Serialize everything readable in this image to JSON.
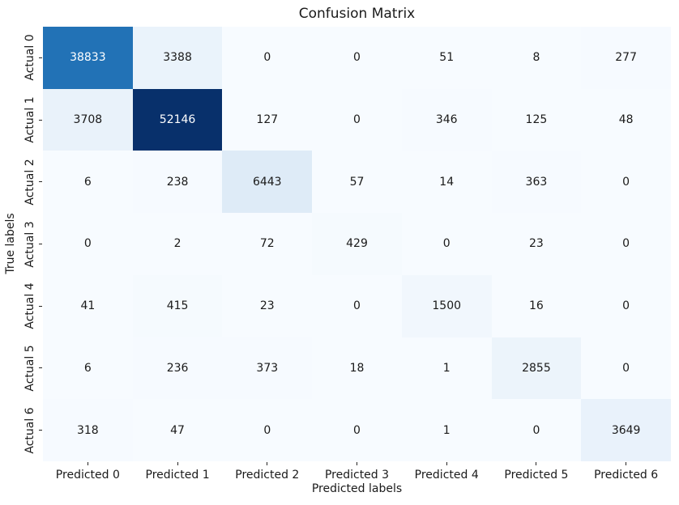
{
  "figure": {
    "background_color": "#ffffff",
    "text_color": "#1a1a1a"
  },
  "chart_data": {
    "type": "heatmap",
    "title": "Confusion Matrix",
    "xlabel": "Predicted labels",
    "ylabel": "True labels",
    "x_tick_labels": [
      "Predicted 0",
      "Predicted 1",
      "Predicted 2",
      "Predicted 3",
      "Predicted 4",
      "Predicted 5",
      "Predicted 6"
    ],
    "y_tick_labels": [
      "Actual 0",
      "Actual 1",
      "Actual 2",
      "Actual 3",
      "Actual 4",
      "Actual 5",
      "Actual 6"
    ],
    "values": [
      [
        38833,
        3388,
        0,
        0,
        51,
        8,
        277
      ],
      [
        3708,
        52146,
        127,
        0,
        346,
        125,
        48
      ],
      [
        6,
        238,
        6443,
        57,
        14,
        363,
        0
      ],
      [
        0,
        2,
        72,
        429,
        0,
        23,
        0
      ],
      [
        41,
        415,
        23,
        0,
        1500,
        16,
        0
      ],
      [
        6,
        236,
        373,
        18,
        1,
        2855,
        0
      ],
      [
        318,
        47,
        0,
        0,
        1,
        0,
        3649
      ]
    ],
    "vmin": 0,
    "vmax": 52146,
    "colormap": "Blues",
    "colormap_stops": [
      "#f7fbff",
      "#deebf7",
      "#c6dbef",
      "#9ecae1",
      "#6baed6",
      "#4292c6",
      "#2171b5",
      "#08519c",
      "#08306b"
    ],
    "annotation_color_on_light": "#1a1a1a",
    "annotation_color_on_dark": "#ffffff",
    "grid": false,
    "legend": "none",
    "colorbar": false
  }
}
